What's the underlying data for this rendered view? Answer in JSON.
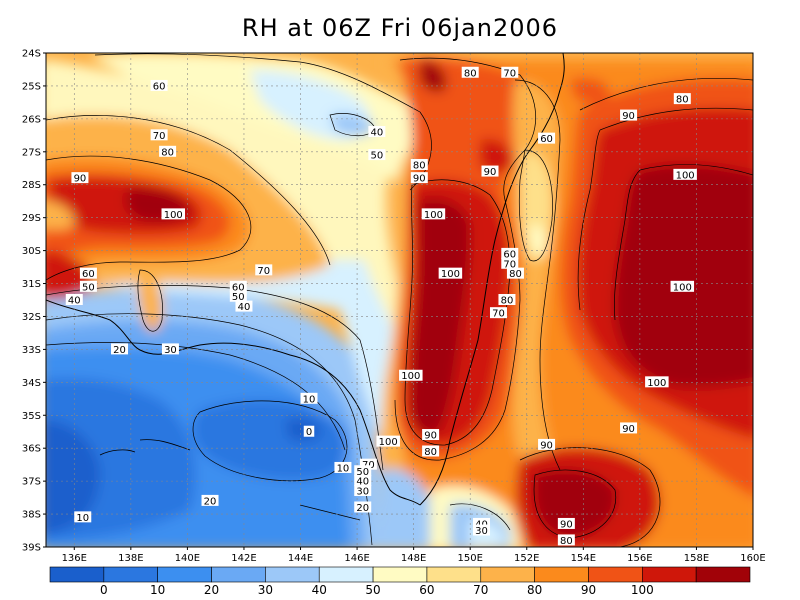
{
  "title": "RH at 06Z Fri 06jan2006",
  "map": {
    "lat_labels": [
      "24S",
      "25S",
      "26S",
      "27S",
      "28S",
      "29S",
      "30S",
      "31S",
      "32S",
      "33S",
      "34S",
      "35S",
      "36S",
      "37S",
      "38S",
      "39S"
    ],
    "lon_labels": [
      "136E",
      "138E",
      "140E",
      "142E",
      "144E",
      "146E",
      "148E",
      "150E",
      "152E",
      "154E",
      "156E",
      "158E",
      "160E"
    ],
    "contour_labels": [
      {
        "text": "60",
        "lon": 139.0,
        "lat": -25.0
      },
      {
        "text": "70",
        "lon": 139.0,
        "lat": -26.5
      },
      {
        "text": "80",
        "lon": 139.3,
        "lat": -27.0
      },
      {
        "text": "90",
        "lon": 136.2,
        "lat": -27.8
      },
      {
        "text": "100",
        "lon": 139.5,
        "lat": -28.9
      },
      {
        "text": "70",
        "lon": 142.7,
        "lat": -30.6
      },
      {
        "text": "60",
        "lon": 136.5,
        "lat": -30.7
      },
      {
        "text": "50",
        "lon": 136.5,
        "lat": -31.1
      },
      {
        "text": "60",
        "lon": 141.8,
        "lat": -31.1
      },
      {
        "text": "50",
        "lon": 141.8,
        "lat": -31.4
      },
      {
        "text": "40",
        "lon": 142.0,
        "lat": -31.7
      },
      {
        "text": "40",
        "lon": 136.0,
        "lat": -31.5
      },
      {
        "text": "30",
        "lon": 139.4,
        "lat": -33.0
      },
      {
        "text": "20",
        "lon": 137.6,
        "lat": -33.0
      },
      {
        "text": "10",
        "lon": 144.3,
        "lat": -34.5
      },
      {
        "text": "0",
        "lon": 144.3,
        "lat": -35.5
      },
      {
        "text": "10",
        "lon": 145.5,
        "lat": -36.6
      },
      {
        "text": "20",
        "lon": 140.8,
        "lat": -37.6
      },
      {
        "text": "10",
        "lon": 136.3,
        "lat": -38.1
      },
      {
        "text": "40",
        "lon": 146.7,
        "lat": -26.4
      },
      {
        "text": "50",
        "lon": 146.7,
        "lat": -27.1
      },
      {
        "text": "80",
        "lon": 150.0,
        "lat": -24.6
      },
      {
        "text": "70",
        "lon": 151.4,
        "lat": -24.6
      },
      {
        "text": "80",
        "lon": 157.5,
        "lat": -25.4
      },
      {
        "text": "90",
        "lon": 155.6,
        "lat": -25.9
      },
      {
        "text": "60",
        "lon": 152.7,
        "lat": -26.6
      },
      {
        "text": "80",
        "lon": 148.2,
        "lat": -27.4
      },
      {
        "text": "90",
        "lon": 148.2,
        "lat": -27.8
      },
      {
        "text": "90",
        "lon": 150.7,
        "lat": -27.6
      },
      {
        "text": "100",
        "lon": 148.7,
        "lat": -28.9
      },
      {
        "text": "100",
        "lon": 157.6,
        "lat": -27.7
      },
      {
        "text": "60",
        "lon": 151.4,
        "lat": -30.1
      },
      {
        "text": "70",
        "lon": 151.4,
        "lat": -30.4
      },
      {
        "text": "80",
        "lon": 151.6,
        "lat": -30.7
      },
      {
        "text": "100",
        "lon": 149.3,
        "lat": -30.7
      },
      {
        "text": "100",
        "lon": 157.5,
        "lat": -31.1
      },
      {
        "text": "80",
        "lon": 151.3,
        "lat": -31.5
      },
      {
        "text": "70",
        "lon": 151.0,
        "lat": -31.9
      },
      {
        "text": "100",
        "lon": 147.9,
        "lat": -33.8
      },
      {
        "text": "100",
        "lon": 156.6,
        "lat": -34.0
      },
      {
        "text": "90",
        "lon": 155.6,
        "lat": -35.4
      },
      {
        "text": "100",
        "lon": 147.1,
        "lat": -35.8
      },
      {
        "text": "90",
        "lon": 148.6,
        "lat": -35.6
      },
      {
        "text": "80",
        "lon": 148.6,
        "lat": -36.1
      },
      {
        "text": "90",
        "lon": 152.7,
        "lat": -35.9
      },
      {
        "text": "70",
        "lon": 146.4,
        "lat": -36.5
      },
      {
        "text": "50",
        "lon": 146.2,
        "lat": -36.7
      },
      {
        "text": "40",
        "lon": 146.2,
        "lat": -37.0
      },
      {
        "text": "30",
        "lon": 146.2,
        "lat": -37.3
      },
      {
        "text": "20",
        "lon": 146.2,
        "lat": -37.8
      },
      {
        "text": "40",
        "lon": 150.4,
        "lat": -38.3
      },
      {
        "text": "30",
        "lon": 150.4,
        "lat": -38.5
      },
      {
        "text": "90",
        "lon": 153.4,
        "lat": -38.3
      },
      {
        "text": "80",
        "lon": 153.4,
        "lat": -38.8
      }
    ]
  },
  "colorbar": {
    "labels": [
      "0",
      "10",
      "20",
      "30",
      "40",
      "50",
      "60",
      "70",
      "80",
      "90",
      "100"
    ],
    "colors": [
      "#1a5fcc",
      "#2b77e0",
      "#3c8ff0",
      "#6aa9f4",
      "#9cc8f8",
      "#d7f1ff",
      "#fffbc3",
      "#fee08a",
      "#fdb24a",
      "#fb8a1c",
      "#f05316",
      "#cf170a",
      "#a10208"
    ]
  }
}
